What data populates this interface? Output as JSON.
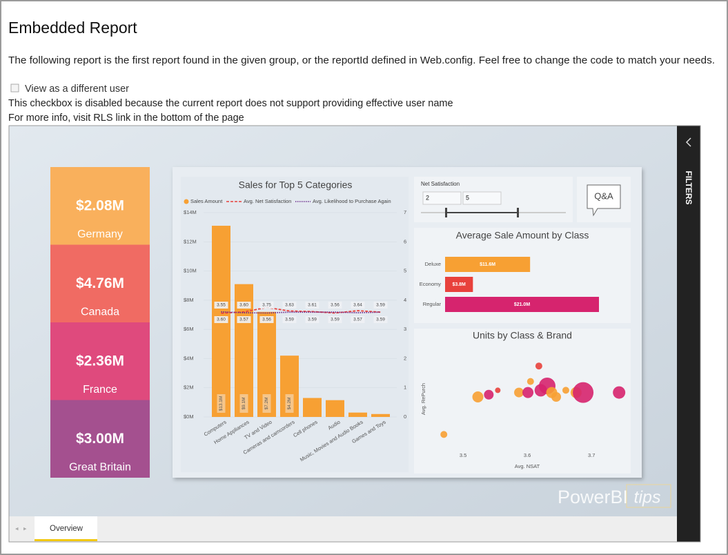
{
  "page": {
    "title": "Embedded Report",
    "description": "The following report is the first report found in the given group, or the reportId defined in Web.config. Feel free to change the code to match your needs.",
    "checkbox_label": "View as a different user",
    "notes": [
      "This checkbox is disabled because the current report does not support providing effective user name",
      "For more info, visit RLS link in the bottom of the page"
    ]
  },
  "report": {
    "kpis": [
      {
        "value": "$2.08M",
        "label": "Germany",
        "color": "#f9b05c"
      },
      {
        "value": "$4.76M",
        "label": "Canada",
        "color": "#f06b63"
      },
      {
        "value": "$2.36M",
        "label": "France",
        "color": "#df4a7d"
      },
      {
        "value": "$3.00M",
        "label": "Great Britain",
        "color": "#a4508f"
      }
    ],
    "sales_chart": {
      "type": "bar+line",
      "title": "Sales for Top 5 Categories",
      "categories": [
        "Computers",
        "Home Appliances",
        "TV and Video",
        "Cameras and camcorders",
        "Cell phones",
        "Audio",
        "Music, Movies and Audio Books",
        "Games and Toys"
      ],
      "series": [
        {
          "name": "Sales Amount",
          "color": "#f7a033",
          "values": [
            13100000,
            9100000,
            7200000,
            4200000,
            1300000,
            1150000,
            300000,
            200000
          ],
          "value_labels": [
            "$13.1M",
            "$9.1M",
            "$7.2M",
            "$4.2M",
            null,
            null,
            null,
            null
          ]
        },
        {
          "name": "Avg. Net Satisfaction",
          "color": "#e8413c",
          "axis": "y2",
          "values": [
            3.55,
            3.6,
            3.75,
            3.63,
            3.61,
            3.56,
            3.64,
            3.59
          ],
          "value_labels": [
            "3.55",
            "3.60",
            "3.75",
            "3.63",
            "3.61",
            "3.56",
            "3.64",
            "3.59"
          ]
        },
        {
          "name": "Avg. Likelihood to Purchase Again",
          "color": "#6b2a8c",
          "axis": "y2",
          "values": [
            3.6,
            3.57,
            3.56,
            3.59,
            3.59,
            3.59,
            3.57,
            3.59
          ],
          "value_labels": [
            "3.60",
            "3.57",
            "3.56",
            "3.59",
            "3.59",
            "3.59",
            "3.57",
            "3.59"
          ]
        }
      ],
      "ylim": [
        0,
        14000000
      ],
      "yticks": [
        {
          "value": 0,
          "label": "$0M"
        },
        {
          "value": 2000000,
          "label": "$2M"
        },
        {
          "value": 4000000,
          "label": "$4M"
        },
        {
          "value": 6000000,
          "label": "$6M"
        },
        {
          "value": 8000000,
          "label": "$8M"
        },
        {
          "value": 10000000,
          "label": "$10M"
        },
        {
          "value": 12000000,
          "label": "$12M"
        },
        {
          "value": 14000000,
          "label": "$14M"
        }
      ],
      "y2lim": [
        0,
        7
      ],
      "y2ticks": [
        0,
        1,
        2,
        3,
        4,
        5,
        6,
        7
      ],
      "grid": true
    },
    "slicer": {
      "title": "Net Satisfaction",
      "min": 2,
      "max": 5
    },
    "qa_button": "Q&A",
    "class_chart": {
      "type": "hbar",
      "title": "Average Sale Amount by Class",
      "categories": [
        "Deluxe",
        "Economy",
        "Regular"
      ],
      "values": [
        11600000,
        3800000,
        21000000
      ],
      "value_labels": [
        "$11.6M",
        "$3.8M",
        "$21.0M"
      ],
      "colors": [
        "#f7a033",
        "#e8413c",
        "#d6246e"
      ]
    },
    "scatter": {
      "type": "scatter",
      "title": "Units by Class & Brand",
      "x_label": "Avg. NSAT",
      "y_label": "Avg. RePurch",
      "x": [
        3.47,
        3.523,
        3.54,
        3.554,
        3.587,
        3.601,
        3.605,
        3.618,
        3.621,
        3.631,
        3.638,
        3.645,
        3.66,
        3.676,
        3.687,
        3.743
      ],
      "y": [
        0.58,
        0.75,
        0.76,
        0.78,
        0.77,
        0.77,
        0.82,
        0.89,
        0.78,
        0.8,
        0.77,
        0.75,
        0.78,
        0.77,
        0.77,
        0.77
      ],
      "sizes": [
        25,
        64,
        49,
        16,
        49,
        64,
        25,
        25,
        81,
        144,
        64,
        49,
        25,
        64,
        225,
        81
      ],
      "colors": [
        "#f7a033",
        "#f7a033",
        "#d6246e",
        "#e8413c",
        "#f7a033",
        "#d6246e",
        "#f7a033",
        "#e8413c",
        "#d6246e",
        "#d6246e",
        "#f7a033",
        "#f7a033",
        "#f7a033",
        "#f7a033",
        "#d6246e",
        "#d6246e"
      ],
      "xlim": [
        3.43,
        3.76
      ],
      "ylim": [
        0.5,
        1.0
      ],
      "xticks": [
        3.5,
        3.6,
        3.7
      ]
    },
    "tab": "Overview",
    "filters": "FILTERS",
    "watermark": [
      "PowerBI",
      "tips"
    ]
  }
}
